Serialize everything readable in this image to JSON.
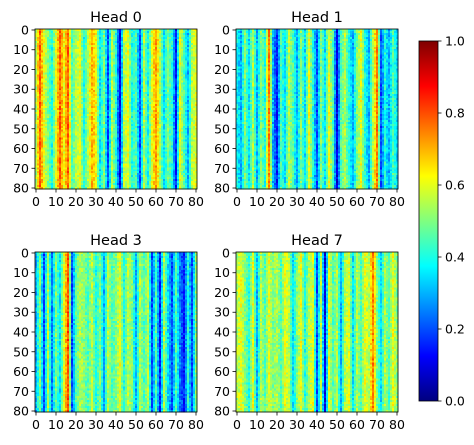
{
  "chart_data": {
    "type": "heatmap",
    "colormap": "jet",
    "colorbar": {
      "range": [
        0.0,
        1.0
      ],
      "tick_values": [
        0.0,
        0.2,
        0.4,
        0.6,
        0.8,
        1.0
      ],
      "tick_labels": [
        "0.0",
        "0.2",
        "0.4",
        "0.6",
        "0.8",
        "1.0"
      ]
    },
    "matrix_size": 81,
    "x_ticks": [
      "0",
      "10",
      "20",
      "30",
      "40",
      "50",
      "60",
      "70",
      "80"
    ],
    "y_ticks": [
      "0",
      "10",
      "20",
      "30",
      "40",
      "50",
      "60",
      "70",
      "80"
    ],
    "panels": [
      {
        "title": "Head 0",
        "column_profile": [
          {
            "col": 0,
            "v": 0.55
          },
          {
            "col": 2,
            "v": 0.78
          },
          {
            "col": 4,
            "v": 0.6
          },
          {
            "col": 6,
            "v": 0.5
          },
          {
            "col": 8,
            "v": 0.4
          },
          {
            "col": 10,
            "v": 0.6
          },
          {
            "col": 12,
            "v": 0.78
          },
          {
            "col": 14,
            "v": 0.62
          },
          {
            "col": 16,
            "v": 0.78
          },
          {
            "col": 18,
            "v": 0.45
          },
          {
            "col": 20,
            "v": 0.55
          },
          {
            "col": 22,
            "v": 0.6
          },
          {
            "col": 24,
            "v": 0.4
          },
          {
            "col": 26,
            "v": 0.55
          },
          {
            "col": 28,
            "v": 0.7
          },
          {
            "col": 30,
            "v": 0.62
          },
          {
            "col": 32,
            "v": 0.35
          },
          {
            "col": 34,
            "v": 0.5
          },
          {
            "col": 36,
            "v": 0.2
          },
          {
            "col": 38,
            "v": 0.55
          },
          {
            "col": 40,
            "v": 0.4
          },
          {
            "col": 42,
            "v": 0.1
          },
          {
            "col": 44,
            "v": 0.55
          },
          {
            "col": 46,
            "v": 0.6
          },
          {
            "col": 48,
            "v": 0.4
          },
          {
            "col": 50,
            "v": 0.45
          },
          {
            "col": 52,
            "v": 0.2
          },
          {
            "col": 54,
            "v": 0.55
          },
          {
            "col": 56,
            "v": 0.38
          },
          {
            "col": 58,
            "v": 0.6
          },
          {
            "col": 60,
            "v": 0.72
          },
          {
            "col": 62,
            "v": 0.55
          },
          {
            "col": 64,
            "v": 0.35
          },
          {
            "col": 66,
            "v": 0.5
          },
          {
            "col": 68,
            "v": 0.4
          },
          {
            "col": 70,
            "v": 0.15
          },
          {
            "col": 72,
            "v": 0.6
          },
          {
            "col": 74,
            "v": 0.45
          },
          {
            "col": 76,
            "v": 0.3
          },
          {
            "col": 78,
            "v": 0.55
          },
          {
            "col": 80,
            "v": 0.6
          }
        ]
      },
      {
        "title": "Head 1",
        "column_profile": [
          {
            "col": 0,
            "v": 0.38
          },
          {
            "col": 2,
            "v": 0.3
          },
          {
            "col": 4,
            "v": 0.5
          },
          {
            "col": 6,
            "v": 0.35
          },
          {
            "col": 8,
            "v": 0.55
          },
          {
            "col": 10,
            "v": 0.3
          },
          {
            "col": 12,
            "v": 0.5
          },
          {
            "col": 14,
            "v": 0.4
          },
          {
            "col": 16,
            "v": 0.75
          },
          {
            "col": 18,
            "v": 0.3
          },
          {
            "col": 20,
            "v": 0.15
          },
          {
            "col": 22,
            "v": 0.45
          },
          {
            "col": 24,
            "v": 0.35
          },
          {
            "col": 26,
            "v": 0.55
          },
          {
            "col": 28,
            "v": 0.45
          },
          {
            "col": 30,
            "v": 0.3
          },
          {
            "col": 32,
            "v": 0.5
          },
          {
            "col": 34,
            "v": 0.35
          },
          {
            "col": 36,
            "v": 0.6
          },
          {
            "col": 38,
            "v": 0.4
          },
          {
            "col": 40,
            "v": 0.2
          },
          {
            "col": 42,
            "v": 0.5
          },
          {
            "col": 44,
            "v": 0.35
          },
          {
            "col": 46,
            "v": 0.6
          },
          {
            "col": 48,
            "v": 0.45
          },
          {
            "col": 50,
            "v": 0.1
          },
          {
            "col": 52,
            "v": 0.45
          },
          {
            "col": 54,
            "v": 0.55
          },
          {
            "col": 56,
            "v": 0.4
          },
          {
            "col": 58,
            "v": 0.3
          },
          {
            "col": 60,
            "v": 0.5
          },
          {
            "col": 62,
            "v": 0.6
          },
          {
            "col": 64,
            "v": 0.4
          },
          {
            "col": 66,
            "v": 0.3
          },
          {
            "col": 68,
            "v": 0.55
          },
          {
            "col": 70,
            "v": 0.75
          },
          {
            "col": 72,
            "v": 0.2
          },
          {
            "col": 74,
            "v": 0.4
          },
          {
            "col": 76,
            "v": 0.3
          },
          {
            "col": 78,
            "v": 0.45
          },
          {
            "col": 80,
            "v": 0.35
          }
        ]
      },
      {
        "title": "Head 3",
        "column_profile": [
          {
            "col": 0,
            "v": 0.3
          },
          {
            "col": 2,
            "v": 0.5
          },
          {
            "col": 4,
            "v": 0.2
          },
          {
            "col": 6,
            "v": 0.55
          },
          {
            "col": 8,
            "v": 0.25
          },
          {
            "col": 10,
            "v": 0.5
          },
          {
            "col": 12,
            "v": 0.35
          },
          {
            "col": 14,
            "v": 0.6
          },
          {
            "col": 16,
            "v": 0.8
          },
          {
            "col": 18,
            "v": 0.2
          },
          {
            "col": 20,
            "v": 0.45
          },
          {
            "col": 22,
            "v": 0.55
          },
          {
            "col": 24,
            "v": 0.5
          },
          {
            "col": 26,
            "v": 0.45
          },
          {
            "col": 28,
            "v": 0.55
          },
          {
            "col": 30,
            "v": 0.4
          },
          {
            "col": 32,
            "v": 0.5
          },
          {
            "col": 34,
            "v": 0.3
          },
          {
            "col": 36,
            "v": 0.55
          },
          {
            "col": 38,
            "v": 0.45
          },
          {
            "col": 40,
            "v": 0.5
          },
          {
            "col": 42,
            "v": 0.6
          },
          {
            "col": 44,
            "v": 0.4
          },
          {
            "col": 46,
            "v": 0.55
          },
          {
            "col": 48,
            "v": 0.5
          },
          {
            "col": 50,
            "v": 0.3
          },
          {
            "col": 52,
            "v": 0.55
          },
          {
            "col": 54,
            "v": 0.45
          },
          {
            "col": 56,
            "v": 0.55
          },
          {
            "col": 58,
            "v": 0.2
          },
          {
            "col": 60,
            "v": 0.45
          },
          {
            "col": 62,
            "v": 0.15
          },
          {
            "col": 64,
            "v": 0.55
          },
          {
            "col": 66,
            "v": 0.35
          },
          {
            "col": 68,
            "v": 0.2
          },
          {
            "col": 70,
            "v": 0.45
          },
          {
            "col": 72,
            "v": 0.25
          },
          {
            "col": 74,
            "v": 0.15
          },
          {
            "col": 76,
            "v": 0.4
          },
          {
            "col": 78,
            "v": 0.2
          },
          {
            "col": 80,
            "v": 0.5
          }
        ]
      },
      {
        "title": "Head 7",
        "column_profile": [
          {
            "col": 0,
            "v": 0.55
          },
          {
            "col": 2,
            "v": 0.6
          },
          {
            "col": 4,
            "v": 0.5
          },
          {
            "col": 6,
            "v": 0.4
          },
          {
            "col": 8,
            "v": 0.6
          },
          {
            "col": 10,
            "v": 0.3
          },
          {
            "col": 12,
            "v": 0.55
          },
          {
            "col": 14,
            "v": 0.45
          },
          {
            "col": 16,
            "v": 0.6
          },
          {
            "col": 18,
            "v": 0.5
          },
          {
            "col": 20,
            "v": 0.55
          },
          {
            "col": 22,
            "v": 0.45
          },
          {
            "col": 24,
            "v": 0.6
          },
          {
            "col": 26,
            "v": 0.55
          },
          {
            "col": 28,
            "v": 0.35
          },
          {
            "col": 30,
            "v": 0.5
          },
          {
            "col": 32,
            "v": 0.6
          },
          {
            "col": 34,
            "v": 0.4
          },
          {
            "col": 36,
            "v": 0.55
          },
          {
            "col": 38,
            "v": 0.6
          },
          {
            "col": 40,
            "v": 0.2
          },
          {
            "col": 42,
            "v": 0.55
          },
          {
            "col": 44,
            "v": 0.1
          },
          {
            "col": 46,
            "v": 0.6
          },
          {
            "col": 48,
            "v": 0.45
          },
          {
            "col": 50,
            "v": 0.55
          },
          {
            "col": 52,
            "v": 0.3
          },
          {
            "col": 54,
            "v": 0.55
          },
          {
            "col": 56,
            "v": 0.6
          },
          {
            "col": 58,
            "v": 0.35
          },
          {
            "col": 60,
            "v": 0.55
          },
          {
            "col": 62,
            "v": 0.45
          },
          {
            "col": 64,
            "v": 0.6
          },
          {
            "col": 66,
            "v": 0.55
          },
          {
            "col": 68,
            "v": 0.75
          },
          {
            "col": 70,
            "v": 0.5
          },
          {
            "col": 72,
            "v": 0.35
          },
          {
            "col": 74,
            "v": 0.55
          },
          {
            "col": 76,
            "v": 0.45
          },
          {
            "col": 78,
            "v": 0.6
          },
          {
            "col": 80,
            "v": 0.5
          }
        ]
      }
    ]
  }
}
